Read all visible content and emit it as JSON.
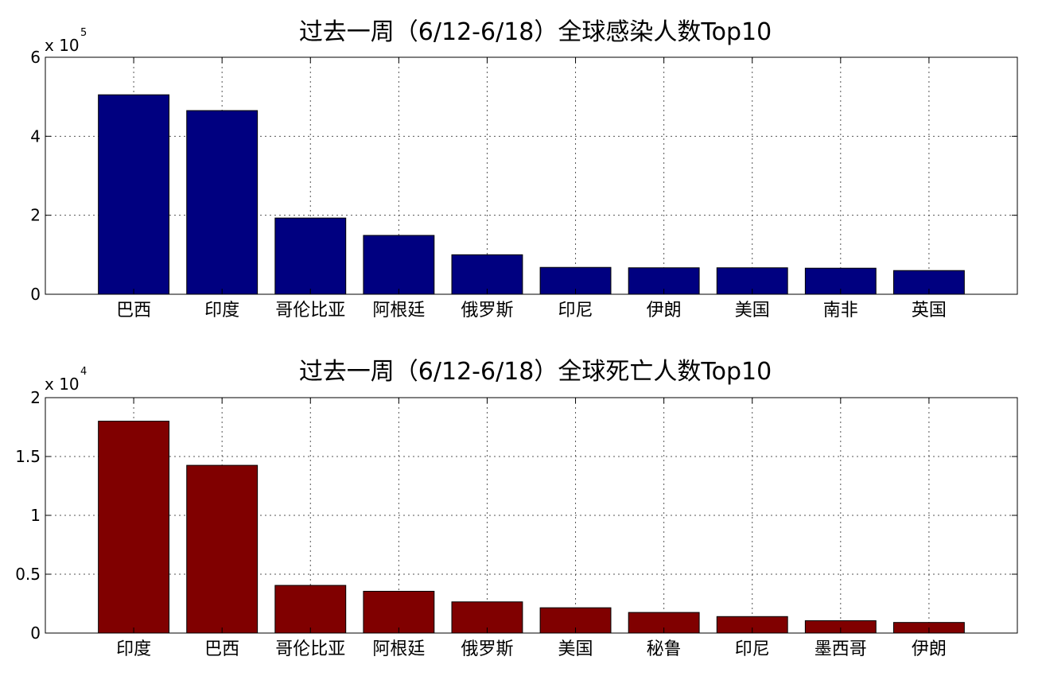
{
  "chart_data": [
    {
      "type": "bar",
      "title": "过去一周（6/12-6/18）全球感染人数Top10",
      "categories": [
        "巴西",
        "印度",
        "哥伦比亚",
        "阿根廷",
        "俄罗斯",
        "印尼",
        "伊朗",
        "美国",
        "南非",
        "英国"
      ],
      "values": [
        505000,
        465000,
        193000,
        149000,
        100000,
        68000,
        67000,
        67000,
        66000,
        60000
      ],
      "ylim": [
        0,
        600000
      ],
      "yticks": [
        0,
        200000,
        400000,
        600000
      ],
      "ytick_labels": [
        "0",
        "2",
        "4",
        "6"
      ],
      "y_exponent_label": {
        "base": "x 10",
        "power": "5"
      },
      "grid": true,
      "bar_color": "#000080",
      "xlabel": "",
      "ylabel": ""
    },
    {
      "type": "bar",
      "title": "过去一周（6/12-6/18）全球死亡人数Top10",
      "categories": [
        "印度",
        "巴西",
        "哥伦比亚",
        "阿根廷",
        "俄罗斯",
        "美国",
        "秘鲁",
        "印尼",
        "墨西哥",
        "伊朗"
      ],
      "values": [
        18000,
        14250,
        4050,
        3550,
        2650,
        2150,
        1750,
        1400,
        1050,
        900
      ],
      "ylim": [
        0,
        20000
      ],
      "yticks": [
        0,
        5000,
        10000,
        15000,
        20000
      ],
      "ytick_labels": [
        "0",
        "0.5",
        "1",
        "1.5",
        "2"
      ],
      "y_exponent_label": {
        "base": "x 10",
        "power": "4"
      },
      "grid": true,
      "bar_color": "#800000",
      "xlabel": "",
      "ylabel": ""
    }
  ]
}
